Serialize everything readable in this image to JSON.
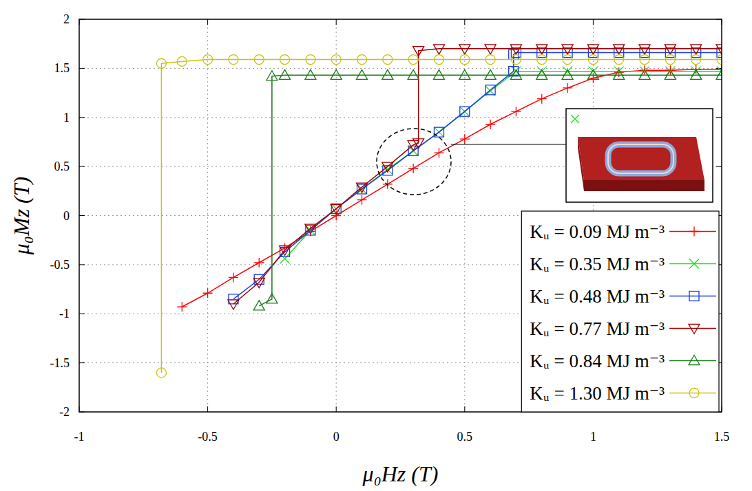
{
  "chart_data": {
    "type": "line",
    "x_label": "μ₀Hz (T)",
    "y_label": "μ₀Mz (T)",
    "xlim": [
      -1,
      1.5
    ],
    "ylim": [
      -2,
      2
    ],
    "xticks": [
      -1,
      -0.5,
      0,
      0.5,
      1,
      1.5
    ],
    "yticks": [
      -2,
      -1.5,
      -1,
      -0.5,
      0,
      0.5,
      1,
      1.5,
      2
    ],
    "grid": true,
    "legend": "lower right",
    "series": [
      {
        "name": "Kᵤ = 0.09 MJ m⁻³",
        "color": "#ff0000",
        "marker": "plus",
        "x": [
          -0.6,
          -0.5,
          -0.4,
          -0.3,
          -0.2,
          -0.1,
          0,
          0.1,
          0.2,
          0.3,
          0.4,
          0.5,
          0.6,
          0.7,
          0.8,
          0.9,
          1.0,
          1.1,
          1.2,
          1.3,
          1.4,
          1.5
        ],
        "values": [
          -0.93,
          -0.79,
          -0.63,
          -0.48,
          -0.33,
          -0.16,
          0.0,
          0.16,
          0.32,
          0.48,
          0.64,
          0.78,
          0.93,
          1.06,
          1.19,
          1.3,
          1.4,
          1.46,
          1.48,
          1.48,
          1.49,
          1.49
        ]
      },
      {
        "name": "Kᵤ = 0.35 MJ m⁻³",
        "color": "#22e022",
        "marker": "x",
        "x": [
          -0.2,
          -0.1,
          0,
          0.1,
          0.2,
          0.3,
          0.4,
          0.5,
          0.6,
          0.7,
          0.8,
          0.9,
          1.0,
          1.1,
          1.2,
          1.3,
          1.4,
          1.5
        ],
        "values": [
          -0.44,
          -0.15,
          0.07,
          0.27,
          0.47,
          0.66,
          0.85,
          1.06,
          1.27,
          1.47,
          1.47,
          1.47,
          1.47,
          1.47,
          1.47,
          1.47,
          1.47,
          1.47
        ]
      },
      {
        "name": "Kᵤ = 0.48 MJ m⁻³",
        "color": "#1a3ee0",
        "marker": "square",
        "x": [
          -0.4,
          -0.3,
          -0.2,
          -0.1,
          0,
          0.1,
          0.2,
          0.3,
          0.4,
          0.5,
          0.6,
          0.69,
          0.69,
          0.7,
          0.8,
          0.9,
          1.0,
          1.1,
          1.2,
          1.3,
          1.4,
          1.5
        ],
        "values": [
          -0.85,
          -0.65,
          -0.37,
          -0.15,
          0.07,
          0.27,
          0.46,
          0.66,
          0.85,
          1.06,
          1.28,
          1.47,
          1.64,
          1.66,
          1.66,
          1.66,
          1.66,
          1.66,
          1.66,
          1.66,
          1.66,
          1.66
        ]
      },
      {
        "name": "Kᵤ = 0.77 MJ m⁻³",
        "color": "#a00000",
        "marker": "triangle-down",
        "x": [
          -0.4,
          -0.3,
          -0.2,
          -0.1,
          0,
          0.1,
          0.2,
          0.3,
          0.32,
          0.32,
          0.4,
          0.5,
          0.6,
          0.7,
          0.8,
          0.9,
          1.0,
          1.1,
          1.2,
          1.3,
          1.4,
          1.5
        ],
        "values": [
          -0.9,
          -0.68,
          -0.35,
          -0.13,
          0.07,
          0.29,
          0.5,
          0.72,
          0.74,
          1.68,
          1.7,
          1.7,
          1.7,
          1.7,
          1.7,
          1.7,
          1.7,
          1.7,
          1.7,
          1.7,
          1.7,
          1.7
        ]
      },
      {
        "name": "Kᵤ = 0.84 MJ m⁻³",
        "color": "#1a7a1a",
        "marker": "triangle",
        "x": [
          -0.3,
          -0.25,
          -0.25,
          -0.2,
          -0.1,
          0,
          0.1,
          0.2,
          0.3,
          0.4,
          0.5,
          0.6,
          0.7,
          0.8,
          0.9,
          1.0,
          1.1,
          1.2,
          1.3,
          1.4,
          1.5
        ],
        "values": [
          -0.92,
          -0.85,
          1.42,
          1.43,
          1.43,
          1.43,
          1.43,
          1.43,
          1.43,
          1.43,
          1.43,
          1.43,
          1.43,
          1.43,
          1.43,
          1.43,
          1.43,
          1.43,
          1.43,
          1.43,
          1.43
        ]
      },
      {
        "name": "Kᵤ = 1.30 MJ m⁻³",
        "color": "#c9c30f",
        "marker": "circle",
        "x": [
          -0.68,
          -0.68,
          -0.6,
          -0.5,
          -0.4,
          -0.3,
          -0.2,
          -0.1,
          0,
          0.1,
          0.2,
          0.3,
          0.4,
          0.5,
          0.6,
          0.7,
          0.8,
          0.9,
          1.0,
          1.1,
          1.2,
          1.3,
          1.4,
          1.5
        ],
        "values": [
          -1.6,
          1.55,
          1.57,
          1.59,
          1.59,
          1.59,
          1.59,
          1.59,
          1.59,
          1.59,
          1.59,
          1.59,
          1.59,
          1.59,
          1.59,
          1.59,
          1.59,
          1.59,
          1.59,
          1.59,
          1.59,
          1.59,
          1.59,
          1.59
        ]
      }
    ]
  }
}
